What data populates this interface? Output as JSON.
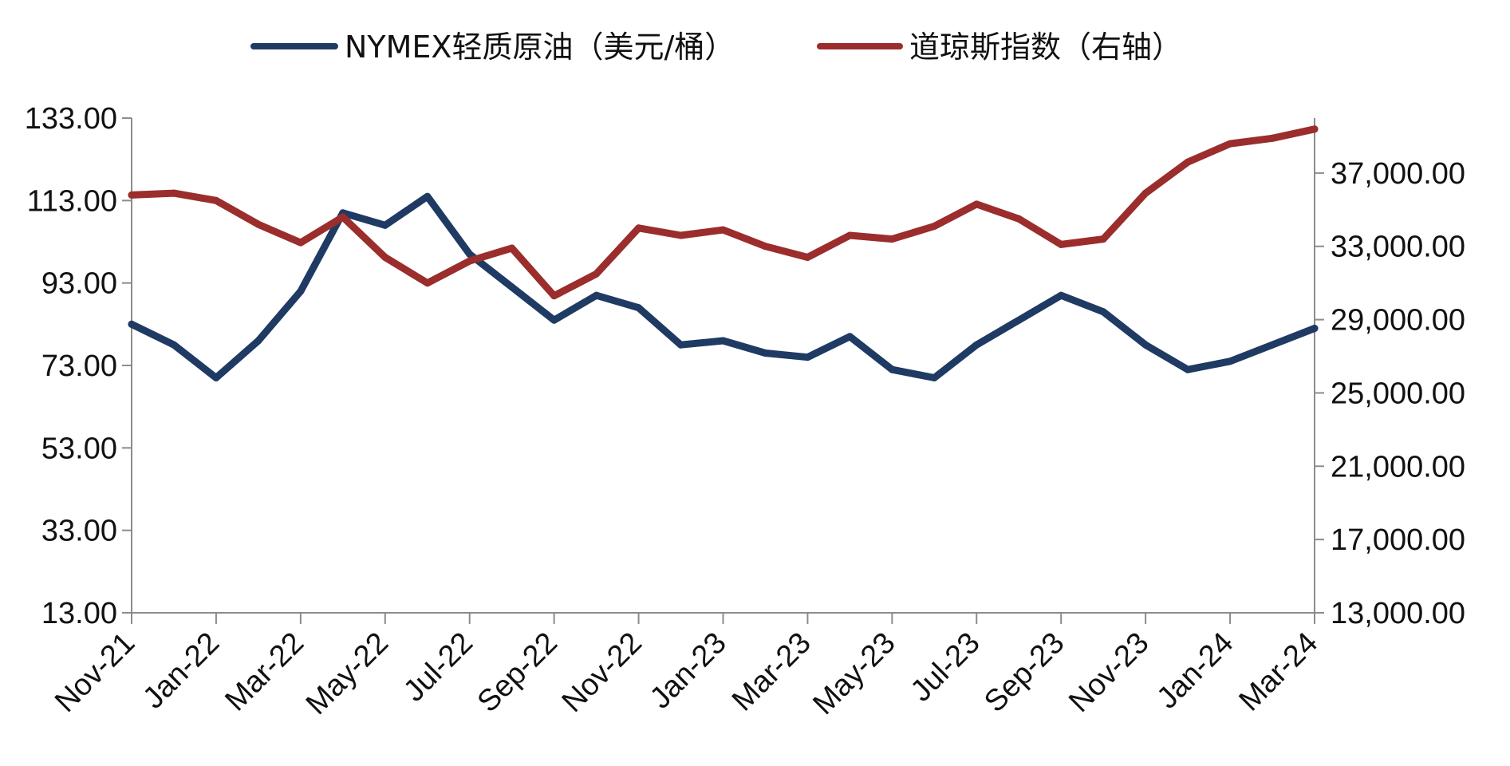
{
  "chart_data": {
    "type": "line",
    "title": "",
    "legend_position": "top",
    "grid": false,
    "x_tick_labels": [
      "Nov-21",
      "Jan-22",
      "Mar-22",
      "May-22",
      "Jul-22",
      "Sep-22",
      "Nov-22",
      "Jan-23",
      "Mar-23",
      "May-23",
      "Jul-23",
      "Sep-23",
      "Nov-23",
      "Jan-24",
      "Mar-24"
    ],
    "x": [
      "Nov-21",
      "Dec-21",
      "Jan-22",
      "Feb-22",
      "Mar-22",
      "Apr-22",
      "May-22",
      "Jun-22",
      "Jul-22",
      "Aug-22",
      "Sep-22",
      "Oct-22",
      "Nov-22",
      "Dec-22",
      "Jan-23",
      "Feb-23",
      "Mar-23",
      "Apr-23",
      "May-23",
      "Jun-23",
      "Jul-23",
      "Aug-23",
      "Sep-23",
      "Oct-23",
      "Nov-23",
      "Dec-23",
      "Jan-24",
      "Feb-24",
      "Mar-24"
    ],
    "left_axis": {
      "ticks": [
        "13.00",
        "33.00",
        "53.00",
        "73.00",
        "93.00",
        "113.00",
        "133.00"
      ],
      "ylim": [
        13,
        133
      ]
    },
    "right_axis": {
      "ticks": [
        "13,000.00",
        "17,000.00",
        "21,000.00",
        "25,000.00",
        "29,000.00",
        "33,000.00",
        "37,000.00"
      ],
      "ylim": [
        13000,
        40000
      ]
    },
    "series": [
      {
        "name": "NYMEX轻质原油（美元/桶）",
        "axis": "left",
        "color": "#1f3a63",
        "values": [
          83,
          78,
          70,
          79,
          91,
          110,
          107,
          114,
          100,
          92,
          84,
          90,
          87,
          78,
          79,
          76,
          75,
          80,
          72,
          70,
          78,
          84,
          90,
          86,
          78,
          72,
          74,
          78,
          82
        ]
      },
      {
        "name": "道琼斯指数（右轴）",
        "axis": "right",
        "color": "#9b2d2d",
        "values": [
          35800,
          35900,
          35500,
          34200,
          33200,
          34600,
          32400,
          31000,
          32200,
          32900,
          30300,
          31500,
          34000,
          33600,
          33900,
          33000,
          32400,
          33600,
          33400,
          34100,
          35300,
          34500,
          33100,
          33400,
          35900,
          37600,
          38600,
          38900,
          39400
        ]
      }
    ]
  }
}
